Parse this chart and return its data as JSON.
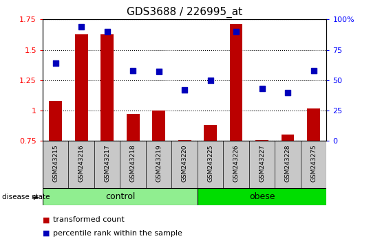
{
  "title": "GDS3688 / 226995_at",
  "samples": [
    "GSM243215",
    "GSM243216",
    "GSM243217",
    "GSM243218",
    "GSM243219",
    "GSM243220",
    "GSM243225",
    "GSM243226",
    "GSM243227",
    "GSM243228",
    "GSM243275"
  ],
  "transformed_count": [
    1.08,
    1.63,
    1.63,
    0.97,
    1.0,
    0.76,
    0.88,
    1.71,
    0.76,
    0.8,
    1.02
  ],
  "percentile_rank": [
    0.64,
    0.94,
    0.9,
    0.58,
    0.57,
    0.42,
    0.5,
    0.9,
    0.43,
    0.4,
    0.58
  ],
  "groups": [
    {
      "label": "control",
      "start": 0,
      "end": 5,
      "color": "#90EE90"
    },
    {
      "label": "obese",
      "start": 6,
      "end": 10,
      "color": "#00DD00"
    }
  ],
  "ylim_left": [
    0.75,
    1.75
  ],
  "ylim_right": [
    0.0,
    1.0
  ],
  "yticks_left": [
    0.75,
    1.0,
    1.25,
    1.5,
    1.75
  ],
  "ytick_labels_left": [
    "0.75",
    "1",
    "1.25",
    "1.5",
    "1.75"
  ],
  "yticks_right": [
    0.0,
    0.25,
    0.5,
    0.75,
    1.0
  ],
  "ytick_labels_right": [
    "0",
    "25",
    "50",
    "75",
    "100%"
  ],
  "bar_color": "#BB0000",
  "dot_color": "#0000BB",
  "bar_width": 0.5,
  "dot_size": 35,
  "label_bg_color": "#C8C8C8",
  "label_bg_edge": "#888888"
}
